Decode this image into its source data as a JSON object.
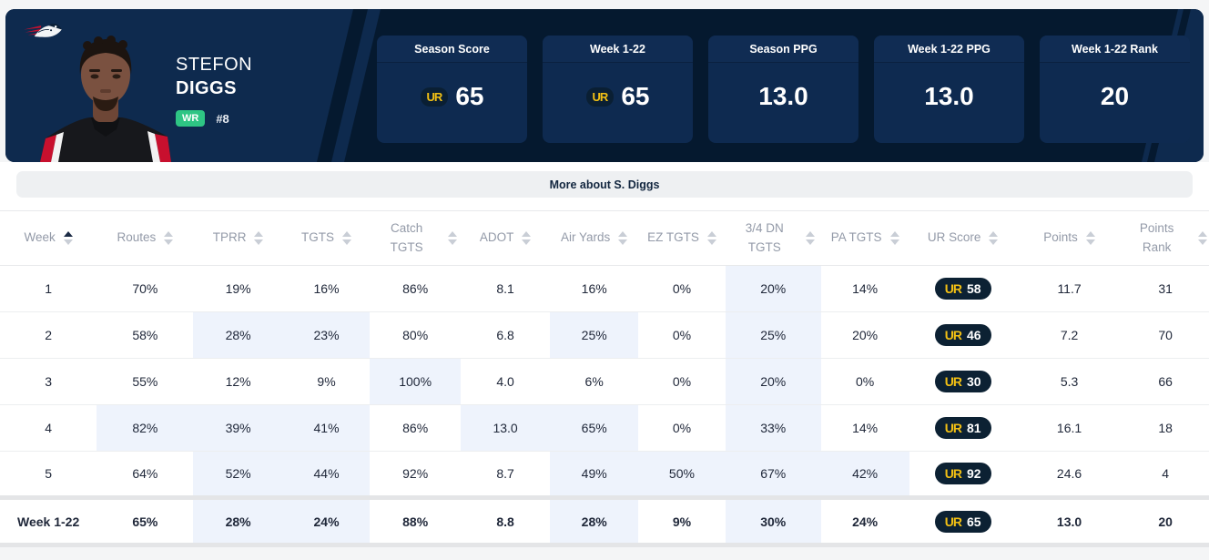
{
  "hero": {
    "team": "patriots",
    "player": {
      "first_name": "STEFON",
      "last_name": "DIGGS",
      "position": "WR",
      "number": "#8"
    },
    "ur_logo_text": "UR",
    "cards": [
      {
        "label": "Season Score",
        "value": "65",
        "has_ur_icon": true
      },
      {
        "label": "Week 1-22",
        "value": "65",
        "has_ur_icon": true
      },
      {
        "label": "Season PPG",
        "value": "13.0",
        "has_ur_icon": false
      },
      {
        "label": "Week 1-22 PPG",
        "value": "13.0",
        "has_ur_icon": false
      },
      {
        "label": "Week 1-22 Rank",
        "value": "20",
        "has_ur_icon": false
      }
    ]
  },
  "more_button": {
    "label": "More about S. Diggs"
  },
  "table": {
    "columns": [
      {
        "label": "Week",
        "sorted": "asc"
      },
      {
        "label": "Routes"
      },
      {
        "label": "TPRR"
      },
      {
        "label": "TGTS"
      },
      {
        "label": "Catch TGTS"
      },
      {
        "label": "ADOT"
      },
      {
        "label": "Air Yards"
      },
      {
        "label": "EZ TGTS"
      },
      {
        "label": "3/4 DN TGTS"
      },
      {
        "label": "PA TGTS"
      },
      {
        "label": "UR Score"
      },
      {
        "label": "Points"
      },
      {
        "label": "Points Rank"
      }
    ],
    "rows": [
      {
        "week": "1",
        "stats": [
          {
            "v": "70%",
            "hl": false
          },
          {
            "v": "19%",
            "hl": false
          },
          {
            "v": "16%",
            "hl": false
          },
          {
            "v": "86%",
            "hl": false
          },
          {
            "v": "8.1",
            "hl": false
          },
          {
            "v": "16%",
            "hl": false
          },
          {
            "v": "0%",
            "hl": false
          },
          {
            "v": "20%",
            "hl": true
          },
          {
            "v": "14%",
            "hl": false
          }
        ],
        "ur_score": "58",
        "points": "11.7",
        "points_rank": "31"
      },
      {
        "week": "2",
        "stats": [
          {
            "v": "58%",
            "hl": false
          },
          {
            "v": "28%",
            "hl": true
          },
          {
            "v": "23%",
            "hl": true
          },
          {
            "v": "80%",
            "hl": false
          },
          {
            "v": "6.8",
            "hl": false
          },
          {
            "v": "25%",
            "hl": true
          },
          {
            "v": "0%",
            "hl": false
          },
          {
            "v": "25%",
            "hl": true
          },
          {
            "v": "20%",
            "hl": false
          }
        ],
        "ur_score": "46",
        "points": "7.2",
        "points_rank": "70"
      },
      {
        "week": "3",
        "stats": [
          {
            "v": "55%",
            "hl": false
          },
          {
            "v": "12%",
            "hl": false
          },
          {
            "v": "9%",
            "hl": false
          },
          {
            "v": "100%",
            "hl": true
          },
          {
            "v": "4.0",
            "hl": false
          },
          {
            "v": "6%",
            "hl": false
          },
          {
            "v": "0%",
            "hl": false
          },
          {
            "v": "20%",
            "hl": true
          },
          {
            "v": "0%",
            "hl": false
          }
        ],
        "ur_score": "30",
        "points": "5.3",
        "points_rank": "66"
      },
      {
        "week": "4",
        "stats": [
          {
            "v": "82%",
            "hl": true
          },
          {
            "v": "39%",
            "hl": true
          },
          {
            "v": "41%",
            "hl": true
          },
          {
            "v": "86%",
            "hl": false
          },
          {
            "v": "13.0",
            "hl": true
          },
          {
            "v": "65%",
            "hl": true
          },
          {
            "v": "0%",
            "hl": false
          },
          {
            "v": "33%",
            "hl": true
          },
          {
            "v": "14%",
            "hl": false
          }
        ],
        "ur_score": "81",
        "points": "16.1",
        "points_rank": "18"
      },
      {
        "week": "5",
        "stats": [
          {
            "v": "64%",
            "hl": false
          },
          {
            "v": "52%",
            "hl": true
          },
          {
            "v": "44%",
            "hl": true
          },
          {
            "v": "92%",
            "hl": false
          },
          {
            "v": "8.7",
            "hl": false
          },
          {
            "v": "49%",
            "hl": true
          },
          {
            "v": "50%",
            "hl": true
          },
          {
            "v": "67%",
            "hl": true
          },
          {
            "v": "42%",
            "hl": true
          }
        ],
        "ur_score": "92",
        "points": "24.6",
        "points_rank": "4"
      }
    ],
    "footer_row": {
      "week": "Week 1-22",
      "stats": [
        {
          "v": "65%",
          "hl": false
        },
        {
          "v": "28%",
          "hl": true
        },
        {
          "v": "24%",
          "hl": true
        },
        {
          "v": "88%",
          "hl": false
        },
        {
          "v": "8.8",
          "hl": false
        },
        {
          "v": "28%",
          "hl": true
        },
        {
          "v": "9%",
          "hl": false
        },
        {
          "v": "30%",
          "hl": true
        },
        {
          "v": "24%",
          "hl": false
        }
      ],
      "ur_score": "65",
      "points": "13.0",
      "points_rank": "20"
    }
  },
  "colors": {
    "hero_bg": "#05192f",
    "hero_panel": "#0e2a4e",
    "card_bg": "#0e2a50",
    "badge_green": "#2ec584",
    "ur_yellow": "#f2c014",
    "pill_bg": "#0c2133",
    "highlight_bg": "#eef3fc",
    "highlight_text": "#5f6cf7"
  }
}
